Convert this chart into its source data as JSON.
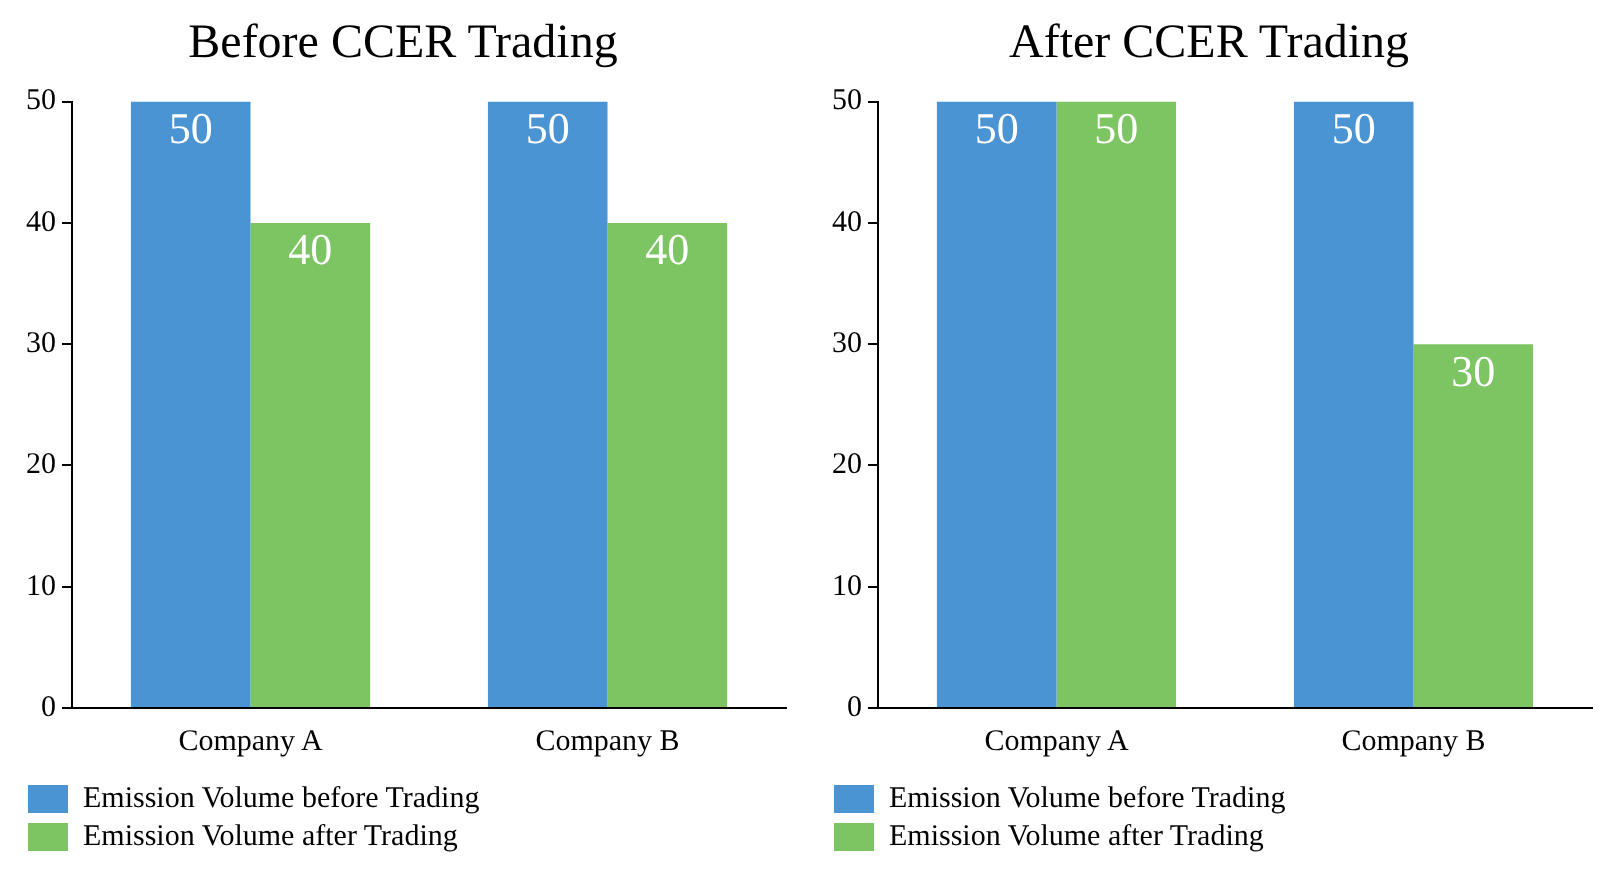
{
  "chart_data": [
    {
      "type": "bar",
      "title": "Before CCER Trading",
      "categories": [
        "Company A",
        "Company B"
      ],
      "series": [
        {
          "name": "Emission Volume before Trading",
          "color": "#4a94d3",
          "values": [
            50,
            50
          ]
        },
        {
          "name": "Emission Volume after Trading",
          "color": "#7dc463",
          "values": [
            40,
            40
          ]
        }
      ],
      "ylim": [
        0,
        50
      ],
      "yticks": [
        0,
        10,
        20,
        30,
        40,
        50
      ],
      "grid": false,
      "legend": "bottom",
      "data_labels": true
    },
    {
      "type": "bar",
      "title": "After CCER Trading",
      "categories": [
        "Company A",
        "Company B"
      ],
      "series": [
        {
          "name": "Emission Volume before Trading",
          "color": "#4a94d3",
          "values": [
            50,
            50
          ]
        },
        {
          "name": "Emission Volume after Trading",
          "color": "#7dc463",
          "values": [
            50,
            30
          ]
        }
      ],
      "ylim": [
        0,
        50
      ],
      "yticks": [
        0,
        10,
        20,
        30,
        40,
        50
      ],
      "grid": false,
      "legend": "bottom",
      "data_labels": true
    }
  ]
}
